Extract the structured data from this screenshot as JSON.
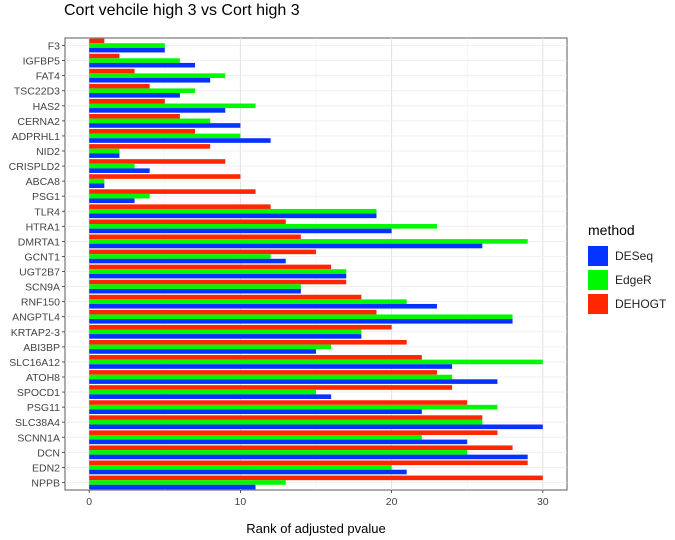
{
  "chart_data": {
    "type": "bar",
    "orientation": "horizontal",
    "title": "Cort vehcile high 3 vs Cort high 3",
    "xlabel": "Rank of adjusted pvalue",
    "ylabel": "",
    "xlim": [
      0,
      31.5
    ],
    "xticks": [
      0,
      10,
      20,
      30
    ],
    "grid": true,
    "legend_position": "right",
    "legend_title": "method",
    "categories": [
      "F3",
      "IGFBP5",
      "FAT4",
      "TSC22D3",
      "HAS2",
      "CERNA2",
      "ADPRHL1",
      "NID2",
      "CRISPLD2",
      "ABCA8",
      "PSG1",
      "TLR4",
      "HTRA1",
      "DMRTA1",
      "GCNT1",
      "UGT2B7",
      "SCN9A",
      "RNF150",
      "ANGPTL4",
      "KRTAP2-3",
      "ABI3BP",
      "SLC16A12",
      "ATOH8",
      "SPOCD1",
      "PSG11",
      "SLC38A4",
      "SCNN1A",
      "DCN",
      "EDN2",
      "NPPB"
    ],
    "series": [
      {
        "name": "DESeq",
        "color": "#0433ff",
        "values": [
          5,
          7,
          8,
          6,
          9,
          10,
          12,
          2,
          4,
          1,
          3,
          19,
          20,
          26,
          13,
          17,
          14,
          23,
          28,
          18,
          15,
          24,
          27,
          16,
          22,
          30,
          25,
          29,
          21,
          11
        ]
      },
      {
        "name": "EdgeR",
        "color": "#00f900",
        "values": [
          5,
          6,
          9,
          7,
          11,
          8,
          10,
          2,
          3,
          1,
          4,
          19,
          23,
          29,
          12,
          17,
          14,
          21,
          28,
          18,
          16,
          30,
          24,
          15,
          27,
          26,
          22,
          25,
          20,
          13
        ]
      },
      {
        "name": "DEHOGT",
        "color": "#ff2600",
        "values": [
          1,
          2,
          3,
          4,
          5,
          6,
          7,
          8,
          9,
          10,
          11,
          12,
          13,
          14,
          15,
          16,
          17,
          18,
          19,
          20,
          21,
          22,
          23,
          24,
          25,
          26,
          27,
          28,
          29,
          30
        ]
      }
    ]
  }
}
